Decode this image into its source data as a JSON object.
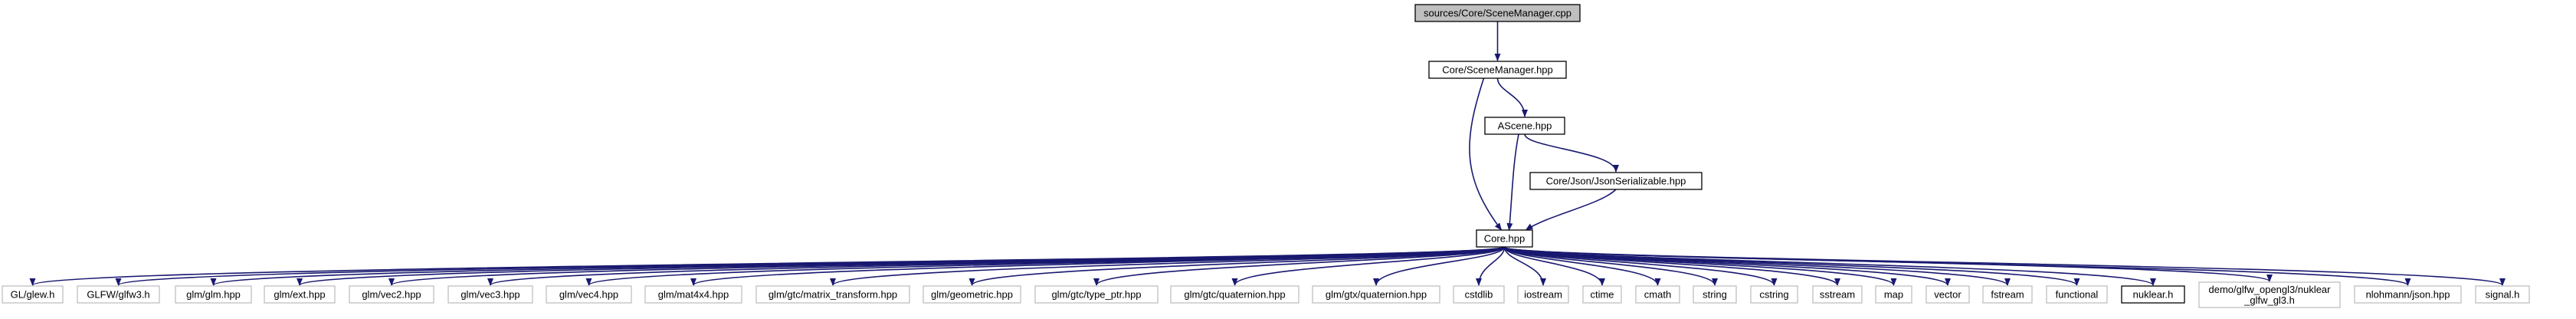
{
  "diagram": {
    "type": "include-dependency-graph",
    "colors": {
      "edge": "#191970",
      "root_fill": "#bfbfbf",
      "documented_border": "#000000",
      "external_border": "#bfbfbf",
      "node_fill": "#ffffff",
      "text": "#000000"
    },
    "nodes": [
      {
        "id": "root",
        "label": "sources/Core/SceneManager.cpp",
        "kind": "root"
      },
      {
        "id": "scenemanager_hpp",
        "label": "Core/SceneManager.hpp",
        "kind": "documented"
      },
      {
        "id": "ascene_hpp",
        "label": "AScene.hpp",
        "kind": "documented"
      },
      {
        "id": "json_hpp",
        "label": "Core/Json/JsonSerializable.hpp",
        "kind": "documented"
      },
      {
        "id": "core_hpp",
        "label": "Core.hpp",
        "kind": "documented"
      },
      {
        "id": "glew",
        "label": "GL/glew.h",
        "kind": "external"
      },
      {
        "id": "glfw",
        "label": "GLFW/glfw3.h",
        "kind": "external"
      },
      {
        "id": "glm",
        "label": "glm/glm.hpp",
        "kind": "external"
      },
      {
        "id": "glm_ext",
        "label": "glm/ext.hpp",
        "kind": "external"
      },
      {
        "id": "glm_vec2",
        "label": "glm/vec2.hpp",
        "kind": "external"
      },
      {
        "id": "glm_vec3",
        "label": "glm/vec3.hpp",
        "kind": "external"
      },
      {
        "id": "glm_vec4",
        "label": "glm/vec4.hpp",
        "kind": "external"
      },
      {
        "id": "glm_mat4",
        "label": "glm/mat4x4.hpp",
        "kind": "external"
      },
      {
        "id": "glm_mt",
        "label": "glm/gtc/matrix_transform.hpp",
        "kind": "external"
      },
      {
        "id": "glm_geo",
        "label": "glm/geometric.hpp",
        "kind": "external"
      },
      {
        "id": "glm_tp",
        "label": "glm/gtc/type_ptr.hpp",
        "kind": "external"
      },
      {
        "id": "glm_gtc_q",
        "label": "glm/gtc/quaternion.hpp",
        "kind": "external"
      },
      {
        "id": "glm_gtx_q",
        "label": "glm/gtx/quaternion.hpp",
        "kind": "external"
      },
      {
        "id": "cstdlib",
        "label": "cstdlib",
        "kind": "external"
      },
      {
        "id": "iostream",
        "label": "iostream",
        "kind": "external"
      },
      {
        "id": "ctime",
        "label": "ctime",
        "kind": "external"
      },
      {
        "id": "cmath",
        "label": "cmath",
        "kind": "external"
      },
      {
        "id": "string",
        "label": "string",
        "kind": "external"
      },
      {
        "id": "cstring",
        "label": "cstring",
        "kind": "external"
      },
      {
        "id": "sstream",
        "label": "sstream",
        "kind": "external"
      },
      {
        "id": "map",
        "label": "map",
        "kind": "external"
      },
      {
        "id": "vector",
        "label": "vector",
        "kind": "external"
      },
      {
        "id": "fstream",
        "label": "fstream",
        "kind": "external"
      },
      {
        "id": "functional",
        "label": "functional",
        "kind": "external"
      },
      {
        "id": "nuklear",
        "label": "nuklear.h",
        "kind": "documented"
      },
      {
        "id": "demo_glfw",
        "label": "demo/glfw_opengl3/nuklear\n_glfw_gl3.h",
        "kind": "external"
      },
      {
        "id": "nlohmann",
        "label": "nlohmann/json.hpp",
        "kind": "external"
      },
      {
        "id": "signal",
        "label": "signal.h",
        "kind": "external"
      }
    ],
    "edges": [
      {
        "from": "root",
        "to": "scenemanager_hpp"
      },
      {
        "from": "scenemanager_hpp",
        "to": "ascene_hpp"
      },
      {
        "from": "scenemanager_hpp",
        "to": "core_hpp"
      },
      {
        "from": "ascene_hpp",
        "to": "json_hpp"
      },
      {
        "from": "ascene_hpp",
        "to": "core_hpp"
      },
      {
        "from": "json_hpp",
        "to": "core_hpp"
      },
      {
        "from": "core_hpp",
        "to": "glew"
      },
      {
        "from": "core_hpp",
        "to": "glfw"
      },
      {
        "from": "core_hpp",
        "to": "glm"
      },
      {
        "from": "core_hpp",
        "to": "glm_ext"
      },
      {
        "from": "core_hpp",
        "to": "glm_vec2"
      },
      {
        "from": "core_hpp",
        "to": "glm_vec3"
      },
      {
        "from": "core_hpp",
        "to": "glm_vec4"
      },
      {
        "from": "core_hpp",
        "to": "glm_mat4"
      },
      {
        "from": "core_hpp",
        "to": "glm_mt"
      },
      {
        "from": "core_hpp",
        "to": "glm_geo"
      },
      {
        "from": "core_hpp",
        "to": "glm_tp"
      },
      {
        "from": "core_hpp",
        "to": "glm_gtc_q"
      },
      {
        "from": "core_hpp",
        "to": "glm_gtx_q"
      },
      {
        "from": "core_hpp",
        "to": "cstdlib"
      },
      {
        "from": "core_hpp",
        "to": "iostream"
      },
      {
        "from": "core_hpp",
        "to": "ctime"
      },
      {
        "from": "core_hpp",
        "to": "cmath"
      },
      {
        "from": "core_hpp",
        "to": "string"
      },
      {
        "from": "core_hpp",
        "to": "cstring"
      },
      {
        "from": "core_hpp",
        "to": "sstream"
      },
      {
        "from": "core_hpp",
        "to": "map"
      },
      {
        "from": "core_hpp",
        "to": "vector"
      },
      {
        "from": "core_hpp",
        "to": "fstream"
      },
      {
        "from": "core_hpp",
        "to": "functional"
      },
      {
        "from": "core_hpp",
        "to": "nuklear"
      },
      {
        "from": "core_hpp",
        "to": "demo_glfw"
      },
      {
        "from": "core_hpp",
        "to": "nlohmann"
      },
      {
        "from": "core_hpp",
        "to": "signal"
      }
    ]
  }
}
